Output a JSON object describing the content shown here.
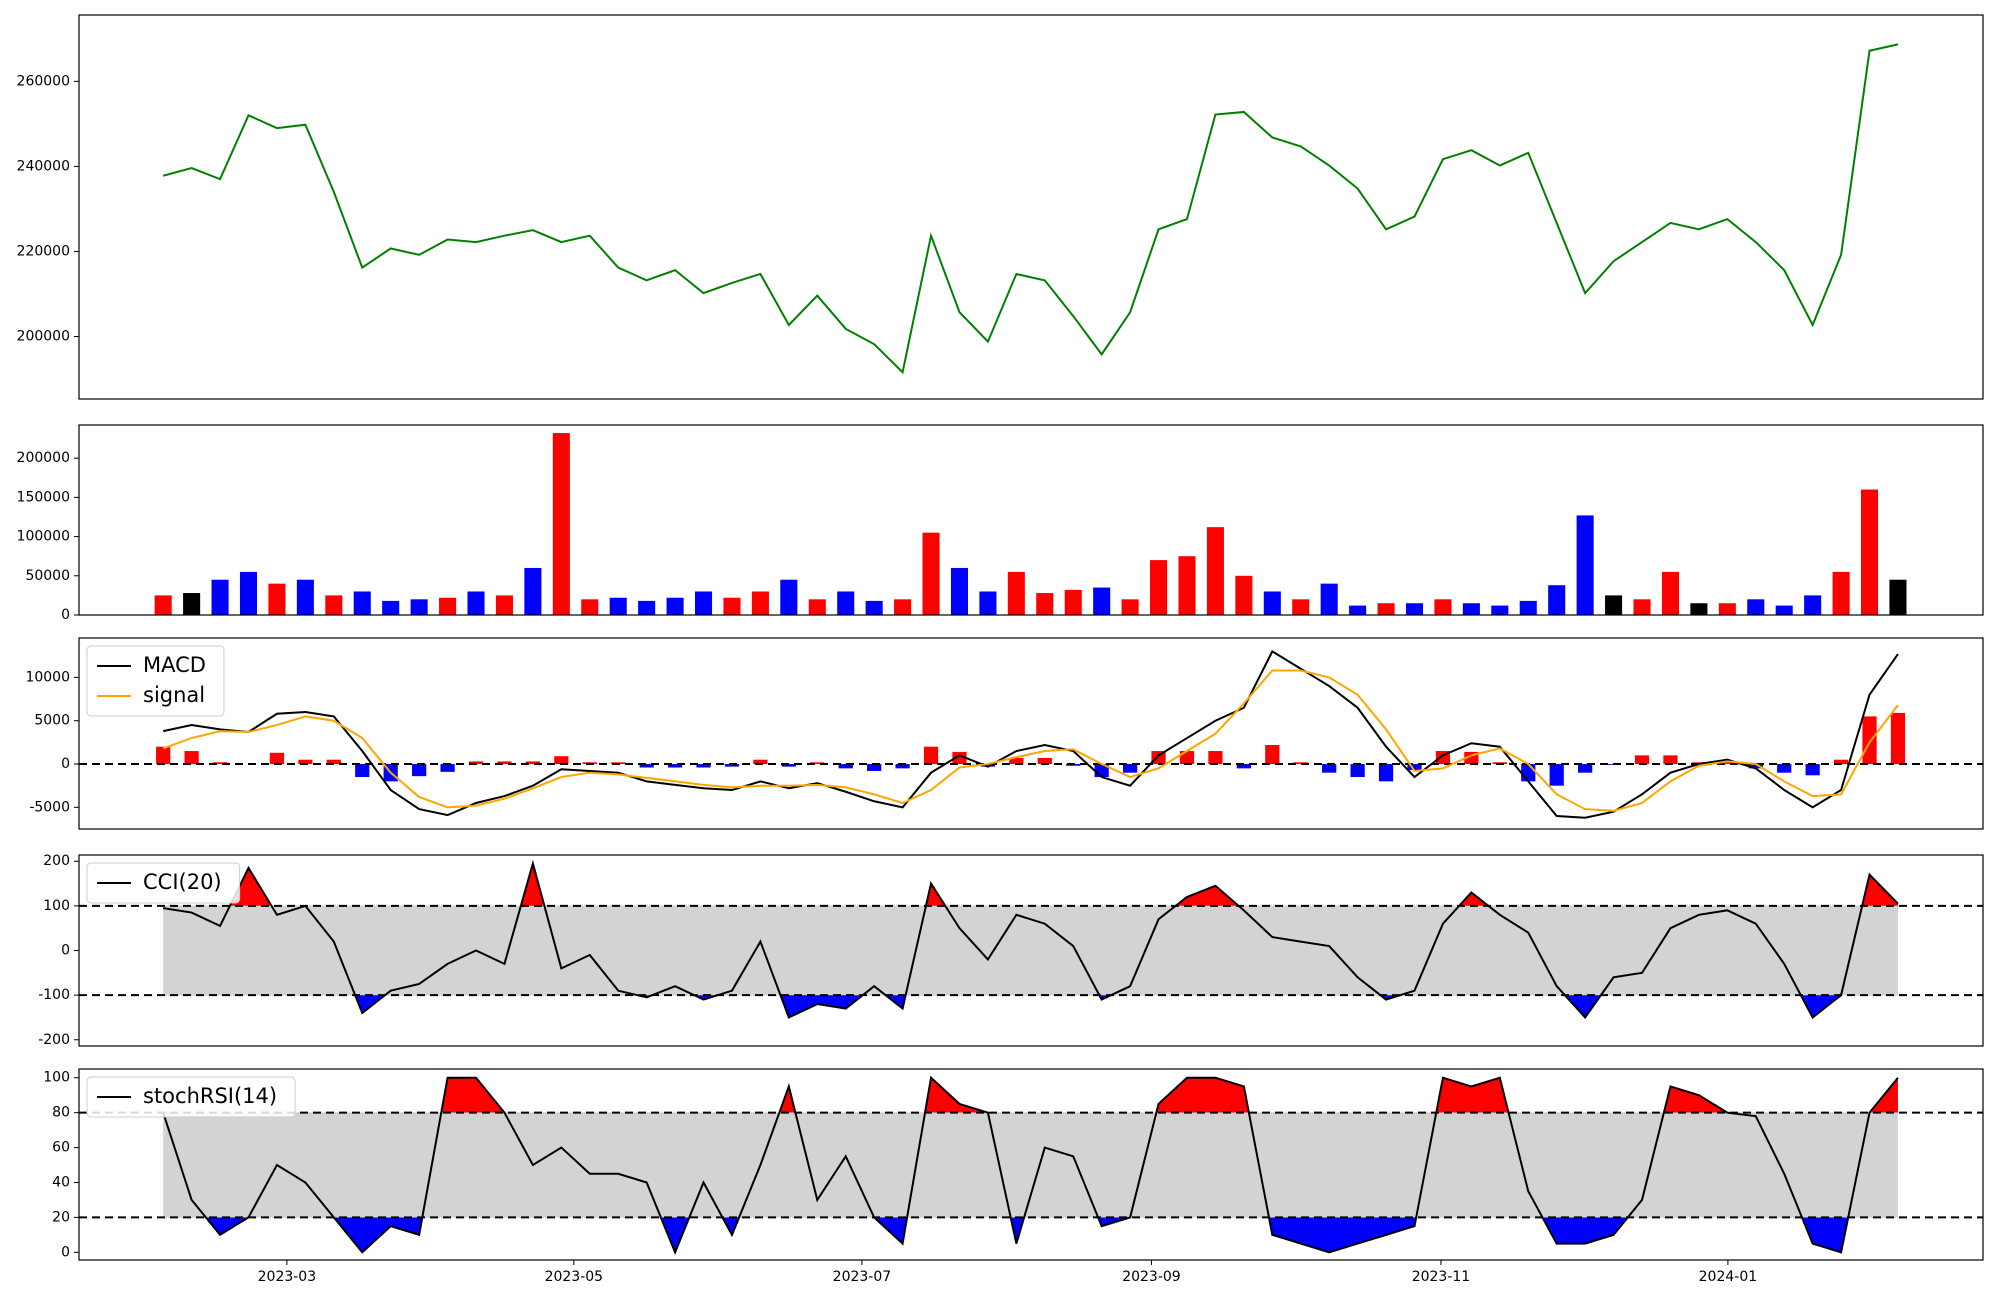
{
  "chart_data": [
    {
      "type": "line",
      "xlim": [
        -2.96,
        63.99
      ],
      "ylim": [
        185300,
        275600
      ],
      "yticks": [
        200000,
        220000,
        240000,
        260000
      ],
      "series": [
        {
          "color": "green",
          "values": [
            237800,
            239600,
            237000,
            252000,
            249000,
            249800,
            234000,
            216200,
            220700,
            219200,
            222800,
            222200,
            223700,
            225000,
            222200,
            223700,
            216200,
            213200,
            215600,
            210200,
            212600,
            214700,
            202700,
            209600,
            201800,
            198200,
            191600,
            223700,
            205700,
            198800,
            214700,
            213200,
            204800,
            195800,
            205700,
            225200,
            227600,
            252200,
            252800,
            246800,
            244700,
            240200,
            234800,
            225200,
            228200,
            241700,
            243800,
            240200,
            243200,
            226700,
            210200,
            217700,
            222200,
            226700,
            225200,
            227600,
            222200,
            215600,
            202700,
            219200,
            267200,
            268700
          ]
        }
      ]
    },
    {
      "type": "bar",
      "xlim": [
        -2.96,
        63.99
      ],
      "ylim": [
        0,
        242300
      ],
      "yticks": [
        0,
        50000,
        100000,
        150000,
        200000
      ],
      "values": [
        25000,
        28000,
        45000,
        55000,
        40000,
        45000,
        25000,
        30000,
        18000,
        20000,
        22000,
        30000,
        25000,
        60000,
        232000,
        20000,
        22000,
        18000,
        22000,
        30000,
        22000,
        30000,
        45000,
        20000,
        30000,
        18000,
        20000,
        105000,
        60000,
        30000,
        55000,
        28000,
        32000,
        35000,
        20000,
        70000,
        75000,
        112000,
        50000,
        30000,
        20000,
        40000,
        12000,
        15000,
        15000,
        20000,
        15000,
        12000,
        18000,
        38000,
        127000,
        25000,
        20000,
        55000,
        15000,
        15000,
        20000,
        12000,
        25000,
        55000,
        160000,
        45000
      ],
      "colors": [
        "red",
        "black",
        "blue",
        "blue",
        "red",
        "blue",
        "red",
        "blue",
        "blue",
        "blue",
        "red",
        "blue",
        "red",
        "blue",
        "red",
        "red",
        "blue",
        "blue",
        "blue",
        "blue",
        "red",
        "red",
        "blue",
        "red",
        "blue",
        "blue",
        "red",
        "red",
        "blue",
        "blue",
        "red",
        "red",
        "red",
        "blue",
        "red",
        "red",
        "red",
        "red",
        "red",
        "blue",
        "red",
        "blue",
        "blue",
        "red",
        "blue",
        "red",
        "blue",
        "blue",
        "blue",
        "blue",
        "blue",
        "black",
        "red",
        "red",
        "black",
        "red",
        "blue",
        "blue",
        "blue",
        "red",
        "red",
        "black"
      ]
    },
    {
      "type": "line",
      "xlim": [
        -2.96,
        63.99
      ],
      "ylim": [
        -7500,
        14550
      ],
      "yticks": [
        -5000,
        0,
        5000,
        10000
      ],
      "thresholds": [
        0
      ],
      "legend": "upper left",
      "series": [
        {
          "name": "MACD",
          "color": "black",
          "values": [
            3800,
            4500,
            4000,
            3700,
            5800,
            6000,
            5500,
            1500,
            -3000,
            -5200,
            -5900,
            -4500,
            -3700,
            -2500,
            -600,
            -800,
            -1000,
            -2000,
            -2400,
            -2800,
            -3000,
            -2000,
            -2800,
            -2200,
            -3200,
            -4300,
            -5000,
            -1000,
            1000,
            -300,
            1500,
            2200,
            1500,
            -1500,
            -2500,
            1000,
            3000,
            5000,
            6500,
            13000,
            11000,
            9000,
            6500,
            2000,
            -1500,
            1000,
            2400,
            2000,
            -2000,
            -6000,
            -6200,
            -5500,
            -3500,
            -1000,
            0,
            500,
            -500,
            -3000,
            -5000,
            -3000,
            8000,
            12700
          ]
        },
        {
          "name": "signal",
          "color": "orange",
          "values": [
            1800,
            3000,
            3800,
            3700,
            4500,
            5500,
            5000,
            3000,
            -1000,
            -3800,
            -5000,
            -4800,
            -4000,
            -2800,
            -1500,
            -1000,
            -1200,
            -1600,
            -2000,
            -2400,
            -2700,
            -2500,
            -2500,
            -2400,
            -2700,
            -3500,
            -4500,
            -3000,
            -400,
            0,
            800,
            1500,
            1700,
            0,
            -1500,
            -500,
            1500,
            3500,
            7000,
            10800,
            10800,
            10000,
            8000,
            4000,
            -800,
            -500,
            1000,
            1800,
            0,
            -3500,
            -5200,
            -5400,
            -4500,
            -2000,
            -200,
            300,
            0,
            -2000,
            -3700,
            -3500,
            2500,
            6800
          ]
        }
      ],
      "histogram": {
        "positive_color": "red",
        "negative_color": "blue",
        "values": [
          2000,
          1500,
          200,
          0,
          1300,
          500,
          500,
          -1500,
          -2000,
          -1400,
          -900,
          300,
          300,
          300,
          900,
          200,
          200,
          -400,
          -400,
          -400,
          -300,
          500,
          -300,
          200,
          -500,
          -800,
          -500,
          2000,
          1400,
          -300,
          700,
          700,
          -200,
          -1500,
          -1000,
          1500,
          1500,
          1500,
          -500,
          2200,
          200,
          -1000,
          -1500,
          -2000,
          -700,
          1500,
          1400,
          200,
          -2000,
          -2500,
          -1000,
          -100,
          1000,
          1000,
          200,
          200,
          -500,
          -1000,
          -1300,
          500,
          5500,
          5900
        ]
      }
    },
    {
      "type": "line",
      "xlim": [
        -2.96,
        63.99
      ],
      "ylim": [
        -214,
        214
      ],
      "yticks": [
        -200,
        -100,
        0,
        100,
        200
      ],
      "thresholds": [
        -100,
        100
      ],
      "legend": "upper left",
      "band_color": "lightgray",
      "above_color": "red",
      "below_color": "blue",
      "series": [
        {
          "name": "CCI(20)",
          "color": "black",
          "values": [
            95,
            85,
            55,
            185,
            80,
            100,
            20,
            -140,
            -90,
            -75,
            -30,
            0,
            -30,
            195,
            -40,
            -10,
            -90,
            -105,
            -80,
            -110,
            -90,
            20,
            -150,
            -120,
            -130,
            -80,
            -130,
            150,
            50,
            -20,
            80,
            60,
            10,
            -110,
            -80,
            70,
            120,
            145,
            90,
            30,
            20,
            10,
            -60,
            -110,
            -90,
            60,
            130,
            80,
            40,
            -80,
            -150,
            -60,
            -50,
            50,
            80,
            90,
            60,
            -30,
            -150,
            -100,
            170,
            105
          ]
        }
      ]
    },
    {
      "type": "line",
      "xlim": [
        -2.96,
        63.99
      ],
      "ylim": [
        -4.4,
        105
      ],
      "yticks": [
        0,
        20,
        40,
        60,
        80,
        100
      ],
      "thresholds": [
        20,
        80
      ],
      "legend": "upper left",
      "band_color": "lightgray",
      "above_color": "red",
      "below_color": "blue",
      "xticks": [
        {
          "value": 4.35,
          "label": "2023-03"
        },
        {
          "value": 14.44,
          "label": "2023-05"
        },
        {
          "value": 24.57,
          "label": "2023-07"
        },
        {
          "value": 34.75,
          "label": "2023-09"
        },
        {
          "value": 44.93,
          "label": "2023-11"
        },
        {
          "value": 55.02,
          "label": "2024-01"
        }
      ],
      "series": [
        {
          "name": "stochRSI(14)",
          "color": "black",
          "values": [
            80,
            30,
            10,
            20,
            50,
            40,
            20,
            0,
            15,
            10,
            100,
            100,
            80,
            50,
            60,
            45,
            45,
            40,
            0,
            40,
            10,
            50,
            95,
            30,
            55,
            20,
            5,
            100,
            85,
            80,
            5,
            60,
            55,
            15,
            20,
            85,
            100,
            100,
            95,
            10,
            5,
            0,
            5,
            10,
            15,
            100,
            95,
            100,
            35,
            5,
            5,
            10,
            30,
            95,
            90,
            80,
            78,
            45,
            5,
            0,
            80,
            100
          ]
        }
      ]
    }
  ]
}
